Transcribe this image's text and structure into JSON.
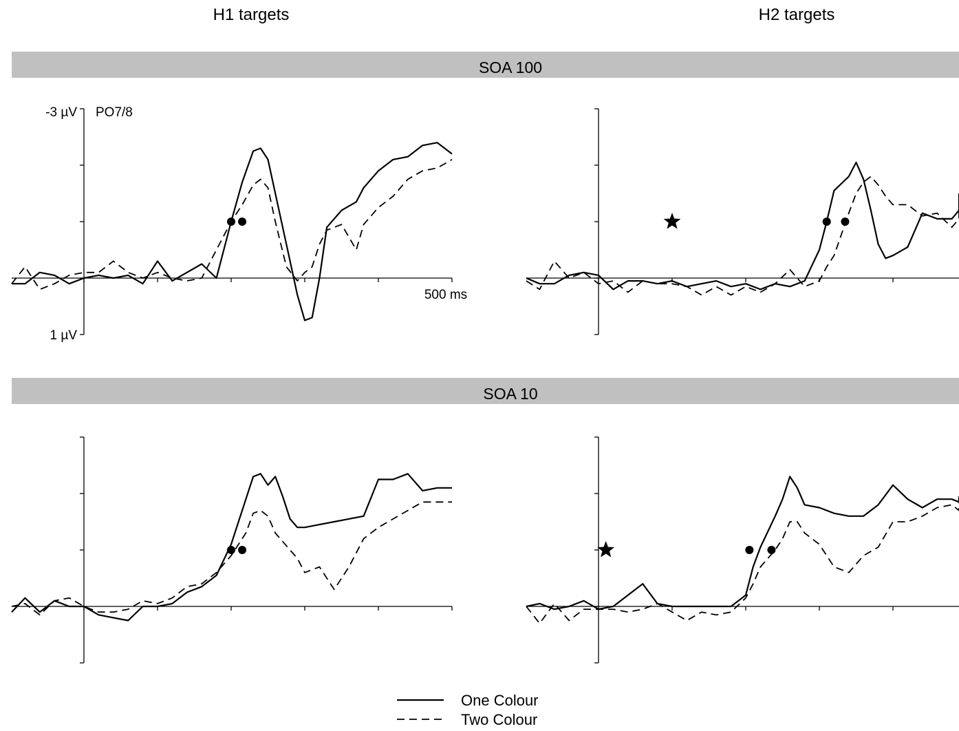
{
  "columns": [
    "H1 targets",
    "H2 targets"
  ],
  "rows": [
    "SOA 100",
    "SOA 10"
  ],
  "legend": [
    {
      "label": "One Colour",
      "style": "solid"
    },
    {
      "label": "Two Colour",
      "style": "dashed"
    }
  ],
  "colors": {
    "band": "#c0c0c0",
    "trace": "#000000"
  },
  "chart_data": {
    "type": "line",
    "electrode_label": "PO7/8",
    "x_unit_label": "500 ms",
    "y_top_label": "-3 µV",
    "y_bottom_label": "1 µV",
    "x_range": [
      -100,
      500
    ],
    "y_range": [
      1,
      -3
    ],
    "y_axis_inverted": true,
    "panels": [
      {
        "column": "H1 targets",
        "row": "SOA 100",
        "star": null,
        "onset_markers": {
          "one_colour_ms": 200,
          "two_colour_ms": 215,
          "amplitude": -1
        },
        "series": [
          {
            "name": "One Colour",
            "x": [
              -100,
              -80,
              -60,
              -40,
              -20,
              0,
              20,
              40,
              60,
              80,
              100,
              120,
              140,
              160,
              180,
              200,
              215,
              230,
              240,
              250,
              260,
              275,
              290,
              300,
              310,
              320,
              330,
              350,
              370,
              380,
              400,
              420,
              440,
              460,
              480,
              500
            ],
            "y": [
              0.1,
              0.1,
              -0.1,
              -0.05,
              0.1,
              0,
              -0.05,
              0,
              -0.05,
              0.1,
              -0.3,
              0.05,
              -0.1,
              -0.25,
              0,
              -1,
              -1.7,
              -2.25,
              -2.3,
              -2.1,
              -1.5,
              -0.6,
              0.3,
              0.75,
              0.7,
              0,
              -0.9,
              -1.2,
              -1.35,
              -1.6,
              -1.9,
              -2.1,
              -2.15,
              -2.35,
              -2.4,
              -2.2
            ]
          },
          {
            "name": "Two Colour",
            "x": [
              -100,
              -80,
              -60,
              -40,
              -20,
              0,
              20,
              40,
              60,
              80,
              100,
              120,
              140,
              160,
              180,
              200,
              215,
              230,
              240,
              250,
              260,
              275,
              290,
              300,
              310,
              320,
              330,
              350,
              370,
              380,
              400,
              420,
              440,
              460,
              480,
              500
            ],
            "y": [
              0.1,
              -0.2,
              0.2,
              0.1,
              -0.05,
              -0.1,
              -0.1,
              -0.3,
              -0.1,
              0,
              -0.1,
              0,
              0.05,
              0,
              -0.5,
              -1,
              -1.3,
              -1.65,
              -1.75,
              -1.6,
              -1,
              -0.2,
              0.05,
              -0.1,
              -0.2,
              -0.6,
              -0.85,
              -0.95,
              -0.5,
              -0.95,
              -1.25,
              -1.45,
              -1.75,
              -1.9,
              -1.95,
              -2.1
            ]
          }
        ]
      },
      {
        "column": "H2 targets",
        "row": "SOA 100",
        "star": {
          "x_ms": 100,
          "amplitude": -1
        },
        "onset_markers": {
          "one_colour_ms": 310,
          "two_colour_ms": 335,
          "amplitude": -1
        },
        "series": [
          {
            "name": "One Colour",
            "x": [
              -100,
              -80,
              -60,
              -40,
              -20,
              0,
              20,
              40,
              60,
              80,
              100,
              120,
              140,
              160,
              180,
              200,
              220,
              240,
              260,
              280,
              300,
              310,
              320,
              340,
              350,
              360,
              370,
              380,
              390,
              400,
              420,
              440,
              460,
              480,
              500,
              520
            ],
            "y": [
              0,
              0.1,
              0.1,
              -0.05,
              -0.1,
              -0.05,
              0.2,
              0.05,
              0.05,
              0.1,
              0.05,
              0.15,
              0.1,
              0.05,
              0.15,
              0.1,
              0.2,
              0.1,
              0.15,
              0.05,
              -0.5,
              -1,
              -1.55,
              -1.8,
              -2.05,
              -1.75,
              -1.2,
              -0.6,
              -0.35,
              -0.4,
              -0.55,
              -1.15,
              -1.05,
              -1.05,
              -1.2,
              -1.5
            ]
          },
          {
            "name": "Two Colour",
            "x": [
              -100,
              -80,
              -60,
              -40,
              -20,
              0,
              20,
              40,
              60,
              80,
              100,
              120,
              140,
              160,
              180,
              200,
              220,
              240,
              260,
              280,
              300,
              310,
              320,
              340,
              350,
              360,
              370,
              380,
              390,
              400,
              420,
              440,
              460,
              480,
              500,
              520
            ],
            "y": [
              0.05,
              0.2,
              -0.3,
              0,
              -0.1,
              0.1,
              0.05,
              0.25,
              0.05,
              0.1,
              0.1,
              0.15,
              0.3,
              0.15,
              0.3,
              0.15,
              0.25,
              0.1,
              -0.15,
              0.15,
              0.05,
              -0.2,
              -0.4,
              -1.15,
              -1.5,
              -1.7,
              -1.8,
              -1.65,
              -1.45,
              -1.3,
              -1.3,
              -1.1,
              -1.15,
              -0.9,
              -1.05,
              -1.2
            ]
          }
        ]
      },
      {
        "column": "H1 targets",
        "row": "SOA 10",
        "star": null,
        "onset_markers": {
          "one_colour_ms": 200,
          "two_colour_ms": 215,
          "amplitude": -1
        },
        "series": [
          {
            "name": "One Colour",
            "x": [
              -100,
              -80,
              -60,
              -40,
              -20,
              0,
              20,
              40,
              60,
              80,
              100,
              120,
              140,
              160,
              180,
              200,
              220,
              230,
              240,
              250,
              260,
              270,
              280,
              290,
              300,
              320,
              340,
              360,
              380,
              400,
              420,
              440,
              460,
              480,
              500
            ],
            "y": [
              0.1,
              -0.15,
              0.1,
              -0.1,
              0,
              0,
              0.15,
              0.2,
              0.25,
              0,
              0,
              -0.05,
              -0.25,
              -0.35,
              -0.55,
              -1.1,
              -1.9,
              -2.3,
              -2.35,
              -2.15,
              -2.3,
              -1.95,
              -1.55,
              -1.4,
              -1.4,
              -1.45,
              -1.5,
              -1.55,
              -1.6,
              -2.25,
              -2.25,
              -2.35,
              -2.05,
              -2.1,
              -2.1
            ]
          },
          {
            "name": "Two Colour",
            "x": [
              -100,
              -80,
              -60,
              -40,
              -20,
              0,
              20,
              40,
              60,
              80,
              100,
              120,
              140,
              160,
              180,
              200,
              220,
              230,
              240,
              250,
              260,
              270,
              280,
              290,
              300,
              320,
              340,
              360,
              380,
              400,
              420,
              440,
              460,
              480,
              500
            ],
            "y": [
              0,
              -0.05,
              0.15,
              -0.1,
              -0.15,
              0,
              0.1,
              0.1,
              0.05,
              -0.1,
              -0.05,
              -0.15,
              -0.35,
              -0.4,
              -0.6,
              -0.9,
              -1.3,
              -1.65,
              -1.7,
              -1.6,
              -1.3,
              -1.15,
              -1,
              -0.85,
              -0.6,
              -0.7,
              -0.3,
              -0.7,
              -1.2,
              -1.4,
              -1.55,
              -1.7,
              -1.85,
              -1.85,
              -1.85
            ]
          }
        ]
      },
      {
        "column": "H2 targets",
        "row": "SOA 10",
        "star": {
          "x_ms": 10,
          "amplitude": -1
        },
        "onset_markers": {
          "one_colour_ms": 205,
          "two_colour_ms": 235,
          "amplitude": -1
        },
        "series": [
          {
            "name": "One Colour",
            "x": [
              -100,
              -80,
              -60,
              -40,
              -20,
              0,
              20,
              40,
              60,
              80,
              100,
              120,
              140,
              160,
              180,
              200,
              210,
              220,
              240,
              250,
              260,
              270,
              280,
              300,
              320,
              340,
              360,
              380,
              400,
              420,
              440,
              460,
              480,
              500,
              520
            ],
            "y": [
              0,
              -0.05,
              0.05,
              0,
              -0.1,
              0.05,
              0,
              -0.2,
              -0.4,
              -0.05,
              0,
              0,
              0,
              0,
              0,
              -0.2,
              -0.7,
              -1.05,
              -1.6,
              -1.9,
              -2.3,
              -2.1,
              -1.8,
              -1.75,
              -1.65,
              -1.6,
              -1.6,
              -1.8,
              -2.15,
              -1.9,
              -1.75,
              -1.9,
              -1.9,
              -1.85,
              -1.95
            ]
          },
          {
            "name": "Two Colour",
            "x": [
              -100,
              -80,
              -60,
              -40,
              -20,
              0,
              20,
              40,
              60,
              80,
              100,
              120,
              140,
              160,
              180,
              200,
              210,
              220,
              240,
              250,
              260,
              270,
              280,
              300,
              320,
              340,
              360,
              380,
              400,
              420,
              440,
              460,
              480,
              500,
              520
            ],
            "y": [
              0,
              0.3,
              -0.05,
              0.25,
              0.05,
              0.05,
              0.05,
              0.1,
              0.05,
              -0.05,
              0.1,
              0.25,
              0.1,
              0.15,
              0.1,
              -0.15,
              -0.4,
              -0.7,
              -1,
              -1.2,
              -1.5,
              -1.5,
              -1.3,
              -1.1,
              -0.7,
              -0.6,
              -0.9,
              -1.05,
              -1.5,
              -1.5,
              -1.6,
              -1.75,
              -1.8,
              -1.7,
              -1.9
            ]
          }
        ]
      }
    ]
  }
}
